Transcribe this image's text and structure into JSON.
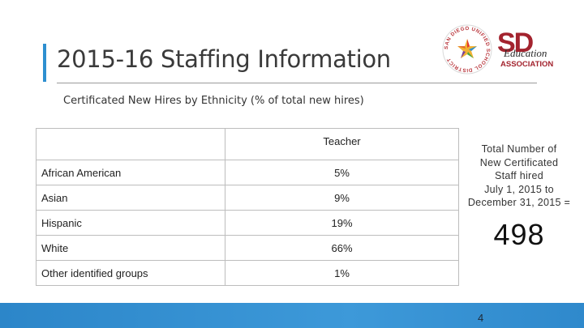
{
  "slide": {
    "title": "2015-16 Staffing Information",
    "subtitle": "Certificated New Hires by Ethnicity (% of total new hires)",
    "page_number": "4"
  },
  "logos": {
    "seal_text": "SAN DIEGO UNIFIED SCHOOL DISTRICT",
    "sdea_letters": "SD",
    "sdea_word": "Education",
    "sdea_assoc": "ASSOCIATION"
  },
  "table": {
    "header": {
      "blank": "",
      "teacher": "Teacher"
    },
    "rows": [
      {
        "label": "African American",
        "value": "5%"
      },
      {
        "label": "Asian",
        "value": "9%"
      },
      {
        "label": "Hispanic",
        "value": "19%"
      },
      {
        "label": "White",
        "value": "66%"
      },
      {
        "label": "Other identified groups",
        "value": "1%"
      }
    ]
  },
  "total": {
    "text": "Total Number of\nNew Certificated\nStaff hired\nJuly 1, 2015 to\nDecember 31, 2015 =",
    "number": "498"
  },
  "colors": {
    "accent": "#2e8fd0",
    "sdea_red": "#a3232e",
    "seal_red": "#b8343a",
    "bottom_bar": "#3592d4"
  }
}
